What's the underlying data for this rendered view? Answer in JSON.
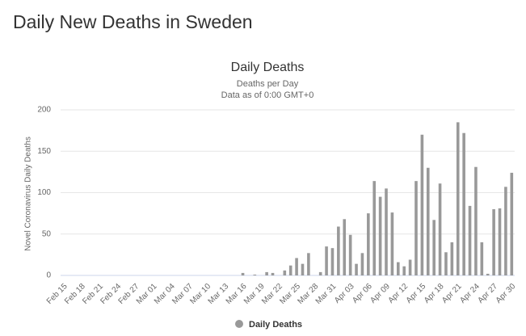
{
  "heading": "Daily New Deaths in Sweden",
  "chart_data": {
    "type": "bar",
    "title": "Daily Deaths",
    "subtitle": "Deaths per Day",
    "note": "Data as of 0:00 GMT+0",
    "ylabel": "Novel Coronavirus Daily Deaths",
    "categories": [
      "Feb 15",
      null,
      null,
      "Feb 18",
      null,
      null,
      "Feb 21",
      null,
      null,
      "Feb 24",
      null,
      null,
      "Feb 27",
      null,
      null,
      "Mar 01",
      null,
      null,
      "Mar 04",
      null,
      null,
      "Mar 07",
      null,
      null,
      "Mar 10",
      null,
      null,
      "Mar 13",
      null,
      null,
      "Mar 16",
      null,
      null,
      "Mar 19",
      null,
      null,
      "Mar 22",
      null,
      null,
      "Mar 25",
      null,
      null,
      "Mar 28",
      null,
      null,
      "Mar 31",
      null,
      null,
      "Apr 03",
      null,
      null,
      "Apr 06",
      null,
      null,
      "Apr 09",
      null,
      null,
      "Apr 12",
      null,
      null,
      "Apr 15",
      null,
      null,
      "Apr 18",
      null,
      null,
      "Apr 21",
      null,
      null,
      "Apr 24",
      null,
      null,
      "Apr 27",
      null,
      null,
      "Apr 30"
    ],
    "series": [
      {
        "name": "Daily Deaths",
        "color": "#999999",
        "values": [
          0,
          0,
          0,
          0,
          0,
          0,
          0,
          0,
          0,
          0,
          0,
          0,
          0,
          0,
          0,
          0,
          0,
          0,
          0,
          0,
          0,
          0,
          0,
          0,
          0,
          0,
          0,
          0,
          0,
          0,
          3,
          0,
          1,
          0,
          4,
          3,
          0,
          6,
          12,
          21,
          14,
          27,
          0,
          4,
          35,
          33,
          59,
          68,
          49,
          14,
          27,
          75,
          114,
          95,
          105,
          76,
          16,
          11,
          19,
          114,
          170,
          130,
          67,
          111,
          28,
          40,
          185,
          172,
          84,
          131,
          40,
          2,
          80,
          81,
          107,
          124
        ]
      }
    ],
    "ylim": [
      0,
      200
    ],
    "yticks": [
      0,
      50,
      100,
      150,
      200
    ],
    "grid": true
  }
}
